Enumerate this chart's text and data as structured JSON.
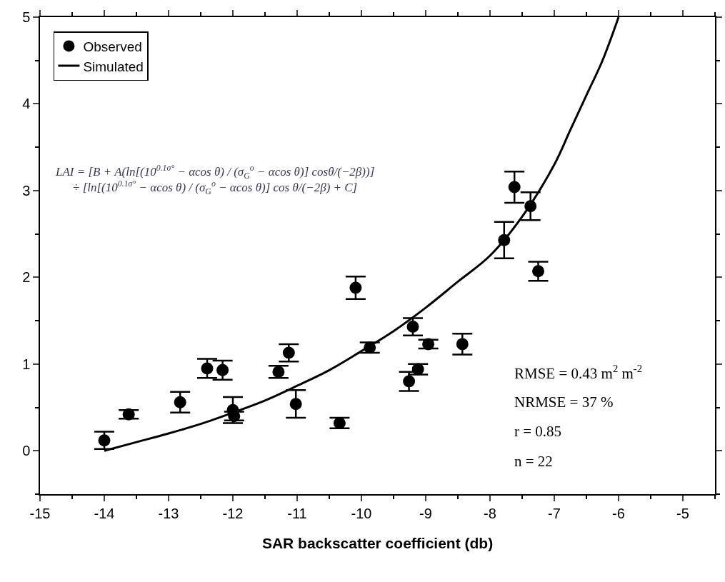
{
  "chart_data": {
    "type": "scatter",
    "xlabel": "SAR backscatter coefficient (db)",
    "xlim": [
      -15,
      -4.5
    ],
    "xticks": [
      -15,
      -14,
      -13,
      -12,
      -11,
      -10,
      -9,
      -8,
      -7,
      -6,
      -5
    ],
    "ylim": [
      -0.5,
      5
    ],
    "yticks": [
      0,
      1,
      2,
      3,
      4,
      5
    ],
    "grid": false,
    "legend": "top left",
    "marker": "circle",
    "series": [
      {
        "name": "Observed",
        "color": "#000000",
        "x": [
          -14.0,
          -13.62,
          -12.82,
          -12.4,
          -12.16,
          -12.0,
          -11.98,
          -11.29,
          -11.13,
          -11.02,
          -10.34,
          -10.09,
          -9.87,
          -9.2,
          -8.96,
          -8.43,
          -9.12,
          -9.26,
          -7.78,
          -7.62,
          -7.37,
          -7.25
        ],
        "values": [
          0.12,
          0.42,
          0.56,
          0.95,
          0.93,
          0.47,
          0.4,
          0.91,
          1.13,
          0.54,
          0.32,
          1.88,
          1.19,
          1.43,
          1.23,
          1.23,
          0.94,
          0.8,
          2.43,
          3.04,
          2.82,
          2.07
        ],
        "errors": [
          0.1,
          0.05,
          0.12,
          0.11,
          0.11,
          0.15,
          0.05,
          0.07,
          0.1,
          0.16,
          0.06,
          0.13,
          0.06,
          0.1,
          0.05,
          0.12,
          0.06,
          0.11,
          0.21,
          0.18,
          0.16,
          0.11
        ]
      },
      {
        "name": "Simulated",
        "type": "line",
        "color": "#000000",
        "marker": "none",
        "x": [
          -14,
          -13.5,
          -13,
          -12.5,
          -12,
          -11.5,
          -11,
          -10.5,
          -10,
          -9.5,
          -9,
          -8.5,
          -8,
          -7.5,
          -7,
          -6.75,
          -6.5,
          -6.25,
          -6
        ],
        "values": [
          0.0,
          0.1,
          0.2,
          0.31,
          0.44,
          0.58,
          0.75,
          0.93,
          1.15,
          1.38,
          1.65,
          1.95,
          2.25,
          2.7,
          3.3,
          3.7,
          4.1,
          4.5,
          5.0
        ]
      }
    ],
    "annotations": [
      "LAI = [B + A(ln[(10$^{0.1σ°}$ − αcos θ) / (σ$_{G}$$^{o}$ − αcos θ)] cosθ/(−2β))]\n÷ [ln[(10$^{0.1σ°}$ − αcos θ) / (σ$_{G}$$^{o}$ − αcos θ)] cos θ/(−2β) + C]",
      "RMSE = 0.43 m$^{2}$ m$^{-2}$",
      "NRMSE = 37 %",
      "r = 0.85",
      "n = 22"
    ]
  }
}
